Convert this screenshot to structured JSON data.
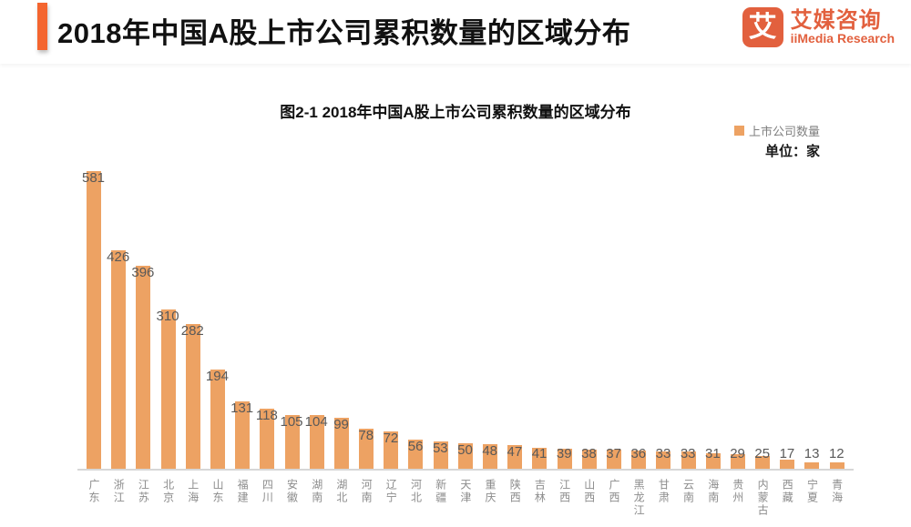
{
  "header": {
    "title": "2018年中国A股上市公司累积数量的区域分布",
    "accent_color": "#F4652F",
    "logo": {
      "glyph": "艾",
      "name_zh": "艾媒咨询",
      "name_en": "iiMedia Research",
      "color": "#E2603E"
    }
  },
  "chart_data": {
    "type": "bar",
    "title": "图2-1 2018年中国A股上市公司累积数量的区域分布",
    "legend": "上市公司数量",
    "legend_position": "top-right",
    "unit_label": "单位：家",
    "grid": false,
    "categories": [
      "广东",
      "浙江",
      "江苏",
      "北京",
      "上海",
      "山东",
      "福建",
      "四川",
      "安徽",
      "湖南",
      "湖北",
      "河南",
      "辽宁",
      "河北",
      "新疆",
      "天津",
      "重庆",
      "陕西",
      "吉林",
      "江西",
      "山西",
      "广西",
      "黑龙江",
      "甘肃",
      "云南",
      "海南",
      "贵州",
      "内蒙古",
      "西藏",
      "宁夏",
      "青海"
    ],
    "values": [
      581,
      426,
      396,
      310,
      282,
      194,
      131,
      118,
      105,
      104,
      99,
      78,
      72,
      56,
      53,
      50,
      48,
      47,
      41,
      39,
      38,
      37,
      36,
      33,
      33,
      31,
      29,
      25,
      17,
      13,
      12
    ],
    "xlabel": "",
    "ylabel": "",
    "ylim": [
      0,
      600
    ],
    "bar_color": "#EDA263",
    "value_label_color": "#595959",
    "axis_label_color": "#8C8C8C",
    "axis_line_color": "#D7D7D7"
  }
}
